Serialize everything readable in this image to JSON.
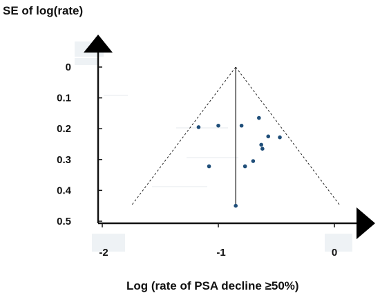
{
  "chart_data": {
    "type": "scatter",
    "title": "",
    "ylabel": "SE of log(rate)",
    "xlabel": "Log (rate of PSA decline ≥50%)",
    "x_ticks": [
      -2,
      -1,
      0
    ],
    "x_tick_labels": [
      "-2",
      "-1",
      "0"
    ],
    "y_ticks": [
      0,
      0.1,
      0.2,
      0.3,
      0.4,
      0.5
    ],
    "y_tick_labels": [
      "0",
      "0.1",
      "0.2",
      "0.3",
      "0.4",
      "0.5"
    ],
    "xlim": [
      -2.05,
      0.15
    ],
    "ylim": [
      0,
      0.5
    ],
    "y_axis_reversed": true,
    "grid": false,
    "legend": "none",
    "point_color": "#1f4e79",
    "pooled_estimate": -0.85,
    "funnel_limits": {
      "apex": [
        -0.85,
        0
      ],
      "left_base": [
        -1.75,
        0.45
      ],
      "right_base": [
        0.05,
        0.45
      ]
    },
    "points": [
      {
        "x": -1.17,
        "y": 0.195
      },
      {
        "x": -1.0,
        "y": 0.19
      },
      {
        "x": -0.8,
        "y": 0.19
      },
      {
        "x": -0.65,
        "y": 0.165
      },
      {
        "x": -0.57,
        "y": 0.225
      },
      {
        "x": -0.47,
        "y": 0.228
      },
      {
        "x": -0.63,
        "y": 0.252
      },
      {
        "x": -0.62,
        "y": 0.265
      },
      {
        "x": -0.7,
        "y": 0.305
      },
      {
        "x": -0.77,
        "y": 0.322
      },
      {
        "x": -1.08,
        "y": 0.322
      },
      {
        "x": -0.85,
        "y": 0.45
      }
    ]
  }
}
